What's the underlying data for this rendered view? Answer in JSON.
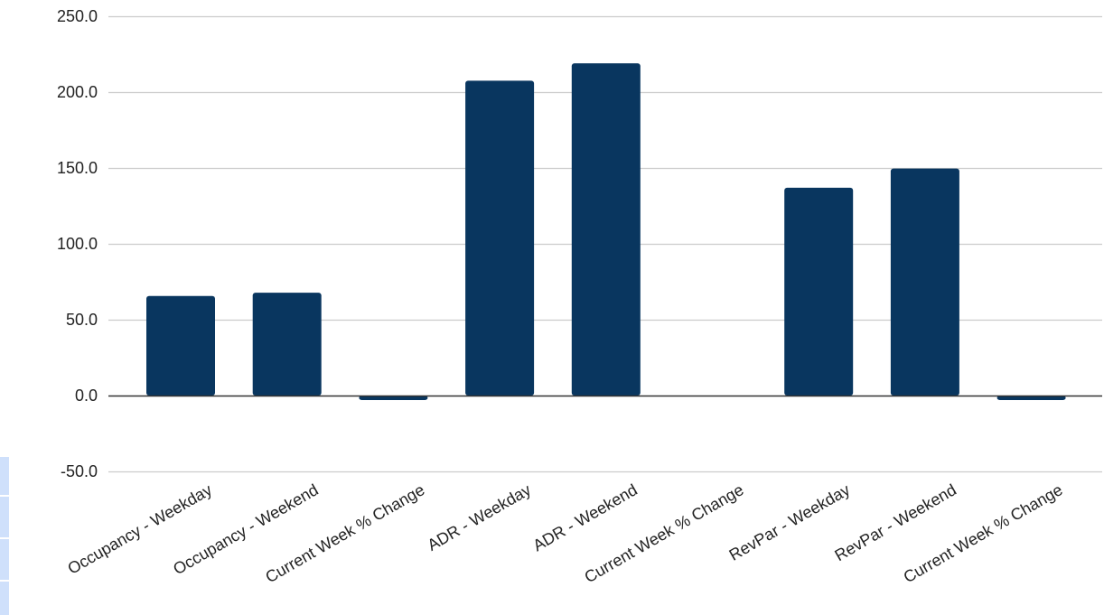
{
  "chart_data": {
    "type": "bar",
    "title": "",
    "xlabel": "",
    "ylabel": "",
    "categories": [
      "Occupancy - Weekday",
      "Occupancy  - Weekend",
      "Current Week % Change",
      "ADR - Weekday",
      "ADR - Weekend",
      "Current Week % Change",
      "RevPar - Weekday",
      "RevPar - Weekend",
      "Current Week % Change"
    ],
    "values": [
      65.6,
      67.8,
      -3.0,
      207.5,
      219.0,
      0.0,
      137.0,
      149.6,
      -3.0
    ],
    "ylim": [
      -50,
      250
    ],
    "yticks": [
      -50,
      0,
      50,
      100,
      150,
      200,
      250
    ],
    "ytick_labels": [
      "-50.0",
      "0.0",
      "50.0",
      "100.0",
      "150.0",
      "200.0",
      "250.0"
    ],
    "grid": true,
    "legend": "none",
    "bar_color": "#09365f",
    "grid_color": "#cccccc",
    "axis_color": "#333333"
  }
}
